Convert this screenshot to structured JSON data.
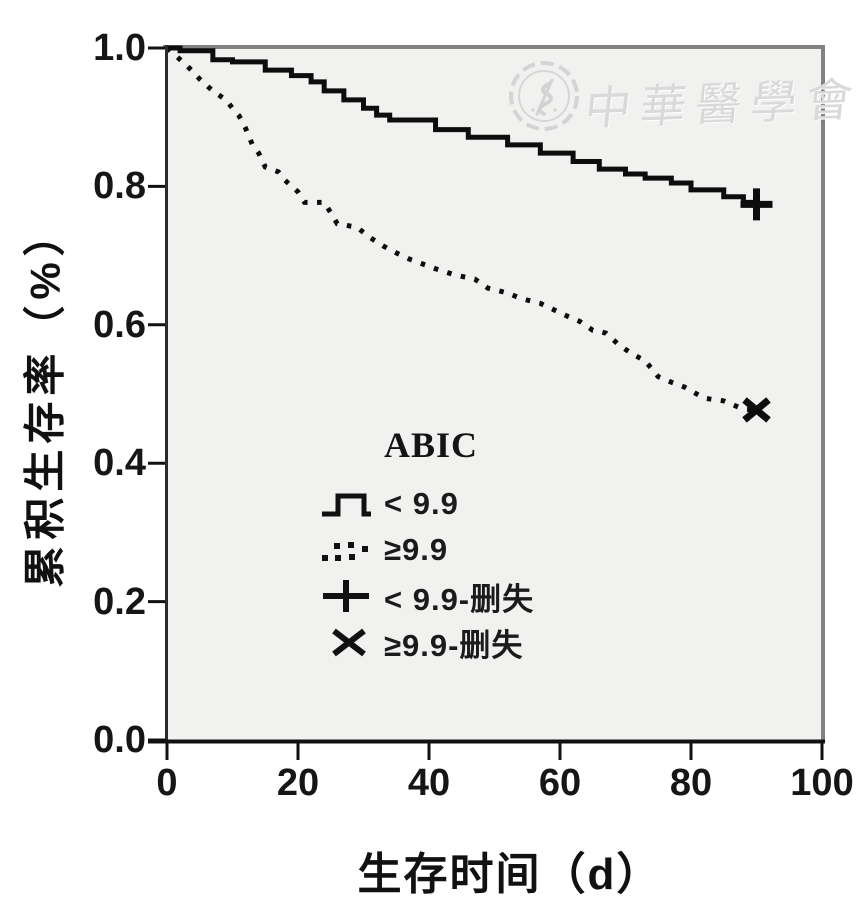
{
  "figure": {
    "kind": "kaplan-meier-survival-plot",
    "plot_bg": "#f1f1ef",
    "frame_color": "#828282",
    "axis_color": "#111111",
    "line_color": "#0d0d0d"
  },
  "watermark": {
    "seal_icon": "cma-seal",
    "text": "中華醫學會",
    "color": "#d9d9d9"
  },
  "y_axis": {
    "title": "累积生存率（%）",
    "ticks": [
      "1.0",
      "0.8",
      "0.6",
      "0.4",
      "0.2",
      "0.0"
    ],
    "tick_values": [
      1.0,
      0.8,
      0.6,
      0.4,
      0.2,
      0.0
    ]
  },
  "x_axis": {
    "title": "生存时间（d）",
    "ticks": [
      "0",
      "20",
      "40",
      "60",
      "80",
      "100"
    ],
    "tick_values": [
      0,
      20,
      40,
      60,
      80,
      100
    ]
  },
  "legend": {
    "title": "ABIC",
    "items": [
      {
        "marker": "step-line",
        "label": "< 9.9"
      },
      {
        "marker": "dotted-line",
        "label": "≥9.9"
      },
      {
        "marker": "plus",
        "label": "< 9.9-删失"
      },
      {
        "marker": "cross",
        "label": "≥9.9-删失"
      }
    ]
  },
  "chart_data": {
    "type": "line",
    "subtype": "kaplan-meier",
    "title": "",
    "xlabel": "生存时间（d）",
    "ylabel": "累积生存率（%）",
    "xlim": [
      0,
      100
    ],
    "ylim": [
      0.0,
      1.0
    ],
    "grid": false,
    "legend_position": "center",
    "series": [
      {
        "name": "ABIC < 9.9",
        "style": "solid-step",
        "interpolation": "step-after",
        "points": [
          [
            0,
            1.0
          ],
          [
            2,
            0.996
          ],
          [
            7,
            0.983
          ],
          [
            10,
            0.98
          ],
          [
            15,
            0.968
          ],
          [
            19,
            0.96
          ],
          [
            22,
            0.951
          ],
          [
            24,
            0.938
          ],
          [
            27,
            0.925
          ],
          [
            30,
            0.913
          ],
          [
            32,
            0.903
          ],
          [
            34,
            0.896
          ],
          [
            41,
            0.882
          ],
          [
            46,
            0.871
          ],
          [
            52,
            0.86
          ],
          [
            57,
            0.848
          ],
          [
            62,
            0.836
          ],
          [
            66,
            0.825
          ],
          [
            70,
            0.818
          ],
          [
            73,
            0.812
          ],
          [
            77,
            0.805
          ],
          [
            80,
            0.795
          ],
          [
            85,
            0.785
          ],
          [
            88,
            0.777
          ],
          [
            90,
            0.774
          ]
        ],
        "censored": [
          [
            90,
            0.774
          ]
        ],
        "censor_marker": "plus"
      },
      {
        "name": "ABIC ≥ 9.9",
        "style": "dotted",
        "interpolation": "linear",
        "points": [
          [
            0,
            1.0
          ],
          [
            3,
            0.975
          ],
          [
            5,
            0.955
          ],
          [
            7,
            0.938
          ],
          [
            9,
            0.925
          ],
          [
            10,
            0.913
          ],
          [
            11,
            0.902
          ],
          [
            12,
            0.884
          ],
          [
            13,
            0.861
          ],
          [
            14,
            0.848
          ],
          [
            15,
            0.828
          ],
          [
            17,
            0.821
          ],
          [
            18,
            0.809
          ],
          [
            20,
            0.792
          ],
          [
            21,
            0.777
          ],
          [
            24,
            0.777
          ],
          [
            25,
            0.762
          ],
          [
            26,
            0.746
          ],
          [
            29,
            0.741
          ],
          [
            31,
            0.726
          ],
          [
            33,
            0.714
          ],
          [
            35,
            0.704
          ],
          [
            37,
            0.695
          ],
          [
            39,
            0.688
          ],
          [
            41,
            0.681
          ],
          [
            44,
            0.672
          ],
          [
            47,
            0.666
          ],
          [
            49,
            0.653
          ],
          [
            52,
            0.646
          ],
          [
            54,
            0.638
          ],
          [
            57,
            0.631
          ],
          [
            59,
            0.622
          ],
          [
            61,
            0.613
          ],
          [
            63,
            0.605
          ],
          [
            65,
            0.592
          ],
          [
            67,
            0.588
          ],
          [
            69,
            0.571
          ],
          [
            71,
            0.558
          ],
          [
            73,
            0.548
          ],
          [
            75,
            0.525
          ],
          [
            77,
            0.517
          ],
          [
            79,
            0.51
          ],
          [
            82,
            0.494
          ],
          [
            85,
            0.49
          ],
          [
            88,
            0.478
          ],
          [
            90,
            0.477
          ]
        ],
        "censored": [
          [
            90,
            0.477
          ]
        ],
        "censor_marker": "cross"
      }
    ]
  }
}
